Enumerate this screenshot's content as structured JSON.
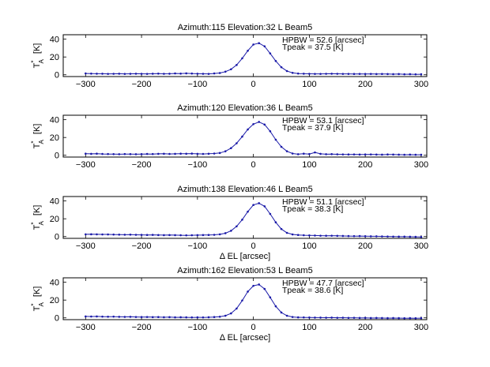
{
  "chart_data": [
    {
      "type": "line",
      "title": "Azimuth:115 Elevation:32 L Beam5",
      "ylabel_main": "T",
      "ylabel_super": "*",
      "ylabel_sub": "A",
      "ylabel_unit": "[K]",
      "xlabel": "",
      "xlim": [
        -340,
        310
      ],
      "ylim": [
        -2,
        45
      ],
      "xticks": [
        -300,
        -200,
        -100,
        0,
        100,
        200,
        300
      ],
      "yticks": [
        0,
        20,
        40
      ],
      "annotations": [
        "HPBW = 52.6 [arcsec]",
        "Tpeak = 37.5 [K]"
      ],
      "series": [
        {
          "color": "#1a1aa8",
          "x": [
            -300,
            -290,
            -280,
            -270,
            -260,
            -250,
            -240,
            -230,
            -220,
            -210,
            -200,
            -190,
            -180,
            -170,
            -160,
            -150,
            -140,
            -130,
            -120,
            -110,
            -100,
            -90,
            -80,
            -70,
            -60,
            -50,
            -40,
            -30,
            -20,
            -10,
            0,
            10,
            20,
            30,
            40,
            50,
            60,
            70,
            80,
            90,
            100,
            110,
            120,
            130,
            140,
            150,
            160,
            170,
            180,
            190,
            200,
            210,
            220,
            230,
            240,
            250,
            260,
            270,
            280,
            290,
            300
          ],
          "y": [
            1.5,
            1.3,
            1.2,
            1.2,
            1.0,
            1.1,
            1.2,
            1.0,
            1.1,
            1.2,
            1.1,
            1.0,
            1.2,
            1.3,
            1.1,
            1.2,
            1.5,
            1.3,
            1.6,
            1.4,
            1.2,
            1.1,
            1.0,
            1.5,
            2.0,
            3.5,
            6.2,
            11.0,
            18.5,
            27.0,
            34.0,
            35.5,
            32.0,
            24.0,
            15.5,
            8.5,
            4.2,
            2.2,
            1.4,
            1.2,
            1.1,
            1.0,
            1.0,
            1.1,
            1.2,
            1.1,
            1.0,
            1.0,
            0.9,
            1.0,
            0.9,
            1.0,
            0.8,
            0.9,
            0.8,
            0.7,
            0.8,
            0.6,
            0.7,
            0.5,
            0.6
          ]
        }
      ]
    },
    {
      "type": "line",
      "title": "Azimuth:120 Elevation:36 L Beam5",
      "ylabel_main": "T",
      "ylabel_super": "*",
      "ylabel_sub": "A",
      "ylabel_unit": "[K]",
      "xlabel": "",
      "xlim": [
        -340,
        310
      ],
      "ylim": [
        -2,
        45
      ],
      "xticks": [
        -300,
        -200,
        -100,
        0,
        100,
        200,
        300
      ],
      "yticks": [
        0,
        20,
        40
      ],
      "annotations": [
        "HPBW = 53.1 [arcsec]",
        "Tpeak = 37.9 [K]"
      ],
      "series": [
        {
          "color": "#1a1aa8",
          "x": [
            -300,
            -290,
            -280,
            -270,
            -260,
            -250,
            -240,
            -230,
            -220,
            -210,
            -200,
            -190,
            -180,
            -170,
            -160,
            -150,
            -140,
            -130,
            -120,
            -110,
            -100,
            -90,
            -80,
            -70,
            -60,
            -50,
            -40,
            -30,
            -20,
            -10,
            0,
            10,
            20,
            30,
            40,
            50,
            60,
            70,
            80,
            90,
            100,
            110,
            120,
            130,
            140,
            150,
            160,
            170,
            180,
            190,
            200,
            210,
            220,
            230,
            240,
            250,
            260,
            270,
            280,
            290,
            300
          ],
          "y": [
            1.8,
            1.6,
            1.8,
            1.5,
            1.4,
            1.3,
            1.2,
            1.4,
            1.3,
            1.2,
            1.3,
            1.5,
            1.4,
            1.6,
            1.7,
            1.5,
            1.6,
            1.8,
            1.7,
            1.9,
            1.6,
            1.5,
            1.7,
            2.0,
            2.6,
            4.5,
            8.0,
            13.5,
            21.0,
            29.0,
            35.0,
            37.5,
            34.5,
            27.0,
            17.5,
            9.5,
            4.5,
            2.0,
            1.2,
            1.8,
            1.4,
            3.2,
            1.6,
            1.2,
            1.3,
            1.1,
            1.0,
            0.9,
            1.0,
            0.8,
            0.9,
            1.0,
            0.8,
            0.7,
            0.9,
            0.8,
            0.7,
            0.6,
            0.7,
            0.6,
            0.6
          ]
        }
      ]
    },
    {
      "type": "line",
      "title": "Azimuth:138 Elevation:46 L Beam5",
      "ylabel_main": "T",
      "ylabel_super": "*",
      "ylabel_sub": "A",
      "ylabel_unit": "[K]",
      "xlabel": "Δ EL  [arcsec]",
      "xlim": [
        -340,
        310
      ],
      "ylim": [
        -2,
        45
      ],
      "xticks": [
        -300,
        -200,
        -100,
        0,
        100,
        200,
        300
      ],
      "yticks": [
        0,
        20,
        40
      ],
      "annotations": [
        "HPBW = 51.1 [arcsec]",
        "Tpeak = 38.3 [K]"
      ],
      "series": [
        {
          "color": "#1a1aa8",
          "x": [
            -300,
            -290,
            -280,
            -270,
            -260,
            -250,
            -240,
            -230,
            -220,
            -210,
            -200,
            -190,
            -180,
            -170,
            -160,
            -150,
            -140,
            -130,
            -120,
            -110,
            -100,
            -90,
            -80,
            -70,
            -60,
            -50,
            -40,
            -30,
            -20,
            -10,
            0,
            10,
            20,
            30,
            40,
            50,
            60,
            70,
            80,
            90,
            100,
            110,
            120,
            130,
            140,
            150,
            160,
            170,
            180,
            190,
            200,
            210,
            220,
            230,
            240,
            250,
            260,
            270,
            280,
            290,
            300
          ],
          "y": [
            2.5,
            2.6,
            2.5,
            2.4,
            2.4,
            2.3,
            2.2,
            2.1,
            2.2,
            2.0,
            1.9,
            1.8,
            1.9,
            1.7,
            1.6,
            1.7,
            1.6,
            1.5,
            1.4,
            1.5,
            1.6,
            1.7,
            1.8,
            2.0,
            2.5,
            3.8,
            6.5,
            11.5,
            19.0,
            28.0,
            35.5,
            37.5,
            34.0,
            25.5,
            16.0,
            8.5,
            4.2,
            2.4,
            1.8,
            1.5,
            1.3,
            1.2,
            1.0,
            0.9,
            1.0,
            0.8,
            0.7,
            0.6,
            0.5,
            0.6,
            0.4,
            0.3,
            0.3,
            0.2,
            0.1,
            0.0,
            -0.1,
            -0.1,
            -0.2,
            -0.3,
            -0.4
          ]
        }
      ]
    },
    {
      "type": "line",
      "title": "Azimuth:162 Elevation:53 L Beam5",
      "ylabel_main": "T",
      "ylabel_super": "*",
      "ylabel_sub": "A",
      "ylabel_unit": "[K]",
      "xlabel": "Δ EL  [arcsec]",
      "xlim": [
        -340,
        310
      ],
      "ylim": [
        -2,
        45
      ],
      "xticks": [
        -300,
        -200,
        -100,
        0,
        100,
        200,
        300
      ],
      "yticks": [
        0,
        20,
        40
      ],
      "annotations": [
        "HPBW = 47.7 [arcsec]",
        "Tpeak = 38.6 [K]"
      ],
      "series": [
        {
          "color": "#1a1aa8",
          "x": [
            -300,
            -290,
            -280,
            -270,
            -260,
            -250,
            -240,
            -230,
            -220,
            -210,
            -200,
            -190,
            -180,
            -170,
            -160,
            -150,
            -140,
            -130,
            -120,
            -110,
            -100,
            -90,
            -80,
            -70,
            -60,
            -50,
            -40,
            -30,
            -20,
            -10,
            0,
            10,
            20,
            30,
            40,
            50,
            60,
            70,
            80,
            90,
            100,
            110,
            120,
            130,
            140,
            150,
            160,
            170,
            180,
            190,
            200,
            210,
            220,
            230,
            240,
            250,
            260,
            270,
            280,
            290,
            300
          ],
          "y": [
            1.6,
            1.5,
            1.6,
            1.4,
            1.3,
            1.4,
            1.2,
            1.1,
            1.2,
            1.0,
            0.9,
            1.0,
            0.8,
            0.9,
            0.7,
            0.8,
            0.6,
            0.7,
            0.6,
            0.5,
            0.6,
            0.5,
            0.7,
            0.9,
            1.3,
            2.4,
            5.0,
            10.5,
            19.5,
            29.5,
            36.0,
            37.5,
            32.5,
            23.0,
            13.0,
            6.0,
            2.4,
            1.0,
            0.6,
            0.5,
            0.4,
            0.3,
            0.3,
            0.2,
            0.3,
            0.1,
            0.2,
            0.0,
            0.1,
            -0.1,
            0.0,
            -0.2,
            -0.1,
            -0.2,
            -0.3,
            -0.2,
            -0.3,
            -0.4,
            -0.3,
            -0.4,
            -0.3
          ]
        }
      ]
    }
  ]
}
